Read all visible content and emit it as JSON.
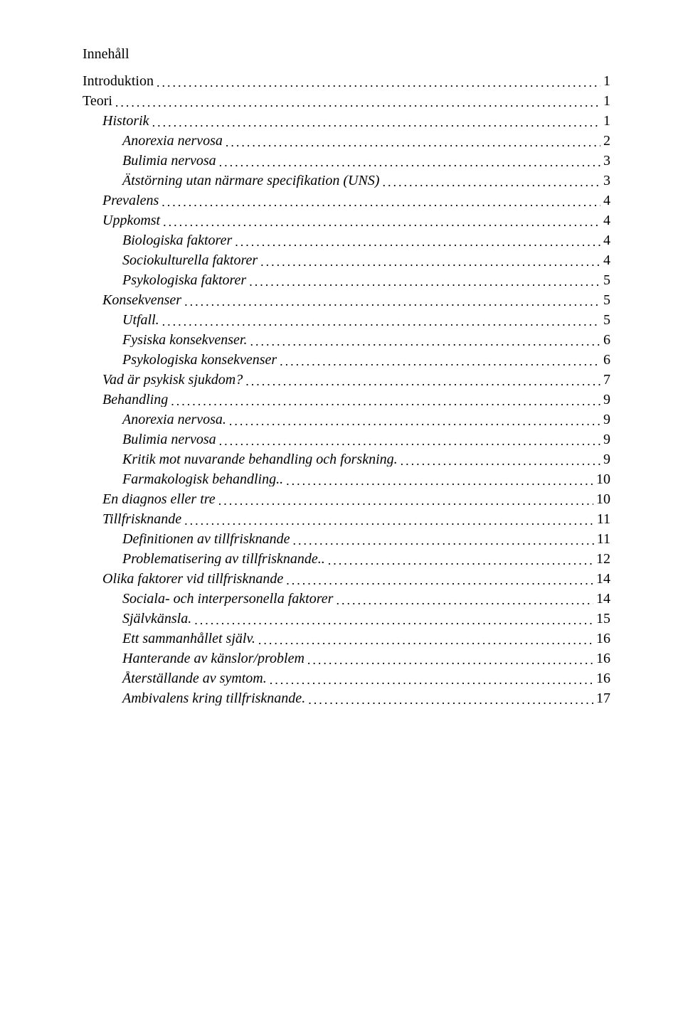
{
  "title": "Innehåll",
  "toc": [
    {
      "label": "Introduktion",
      "page": "1",
      "indent": 0,
      "italic": false
    },
    {
      "label": "Teori",
      "page": "1",
      "indent": 0,
      "italic": false
    },
    {
      "label": "Historik",
      "page": "1",
      "indent": 1,
      "italic": true
    },
    {
      "label": "Anorexia nervosa",
      "page": "2",
      "indent": 2,
      "italic": true
    },
    {
      "label": "Bulimia nervosa",
      "page": "3",
      "indent": 2,
      "italic": true
    },
    {
      "label": "Ätstörning utan närmare specifikation (UNS)",
      "page": "3",
      "indent": 2,
      "italic": true
    },
    {
      "label": "Prevalens",
      "page": "4",
      "indent": 1,
      "italic": true
    },
    {
      "label": "Uppkomst",
      "page": "4",
      "indent": 1,
      "italic": true
    },
    {
      "label": "Biologiska faktorer",
      "page": "4",
      "indent": 2,
      "italic": true
    },
    {
      "label": "Sociokulturella faktorer",
      "page": "4",
      "indent": 2,
      "italic": true
    },
    {
      "label": "Psykologiska faktorer",
      "page": "5",
      "indent": 2,
      "italic": true
    },
    {
      "label": "Konsekvenser",
      "page": "5",
      "indent": 1,
      "italic": true
    },
    {
      "label": "Utfall.",
      "page": "5",
      "indent": 2,
      "italic": true
    },
    {
      "label": "Fysiska konsekvenser.",
      "page": "6",
      "indent": 2,
      "italic": true
    },
    {
      "label": "Psykologiska konsekvenser",
      "page": "6",
      "indent": 2,
      "italic": true
    },
    {
      "label": "Vad är psykisk sjukdom?",
      "page": "7",
      "indent": 1,
      "italic": true
    },
    {
      "label": "Behandling",
      "page": "9",
      "indent": 1,
      "italic": true
    },
    {
      "label": "Anorexia nervosa.",
      "page": "9",
      "indent": 2,
      "italic": true
    },
    {
      "label": "Bulimia nervosa",
      "page": "9",
      "indent": 2,
      "italic": true
    },
    {
      "label": "Kritik mot nuvarande behandling och forskning.",
      "page": "9",
      "indent": 2,
      "italic": true
    },
    {
      "label": "Farmakologisk behandling..",
      "page": "10",
      "indent": 2,
      "italic": true
    },
    {
      "label": "En diagnos eller tre",
      "page": "10",
      "indent": 1,
      "italic": true
    },
    {
      "label": "Tillfrisknande",
      "page": "11",
      "indent": 1,
      "italic": true
    },
    {
      "label": "Definitionen av tillfrisknande",
      "page": "11",
      "indent": 2,
      "italic": true
    },
    {
      "label": "Problematisering av tillfrisknande..",
      "page": "12",
      "indent": 2,
      "italic": true
    },
    {
      "label": "Olika faktorer vid tillfrisknande",
      "page": "14",
      "indent": 1,
      "italic": true
    },
    {
      "label": "Sociala- och interpersonella faktorer",
      "page": "14",
      "indent": 2,
      "italic": true
    },
    {
      "label": "Självkänsla.",
      "page": "15",
      "indent": 2,
      "italic": true
    },
    {
      "label": "Ett sammanhållet själv.",
      "page": "16",
      "indent": 2,
      "italic": true
    },
    {
      "label": "Hanterande av känslor/problem",
      "page": "16",
      "indent": 2,
      "italic": true
    },
    {
      "label": "Återställande av symtom.",
      "page": "16",
      "indent": 2,
      "italic": true
    },
    {
      "label": "Ambivalens kring tillfrisknande.",
      "page": "17",
      "indent": 2,
      "italic": true
    }
  ]
}
